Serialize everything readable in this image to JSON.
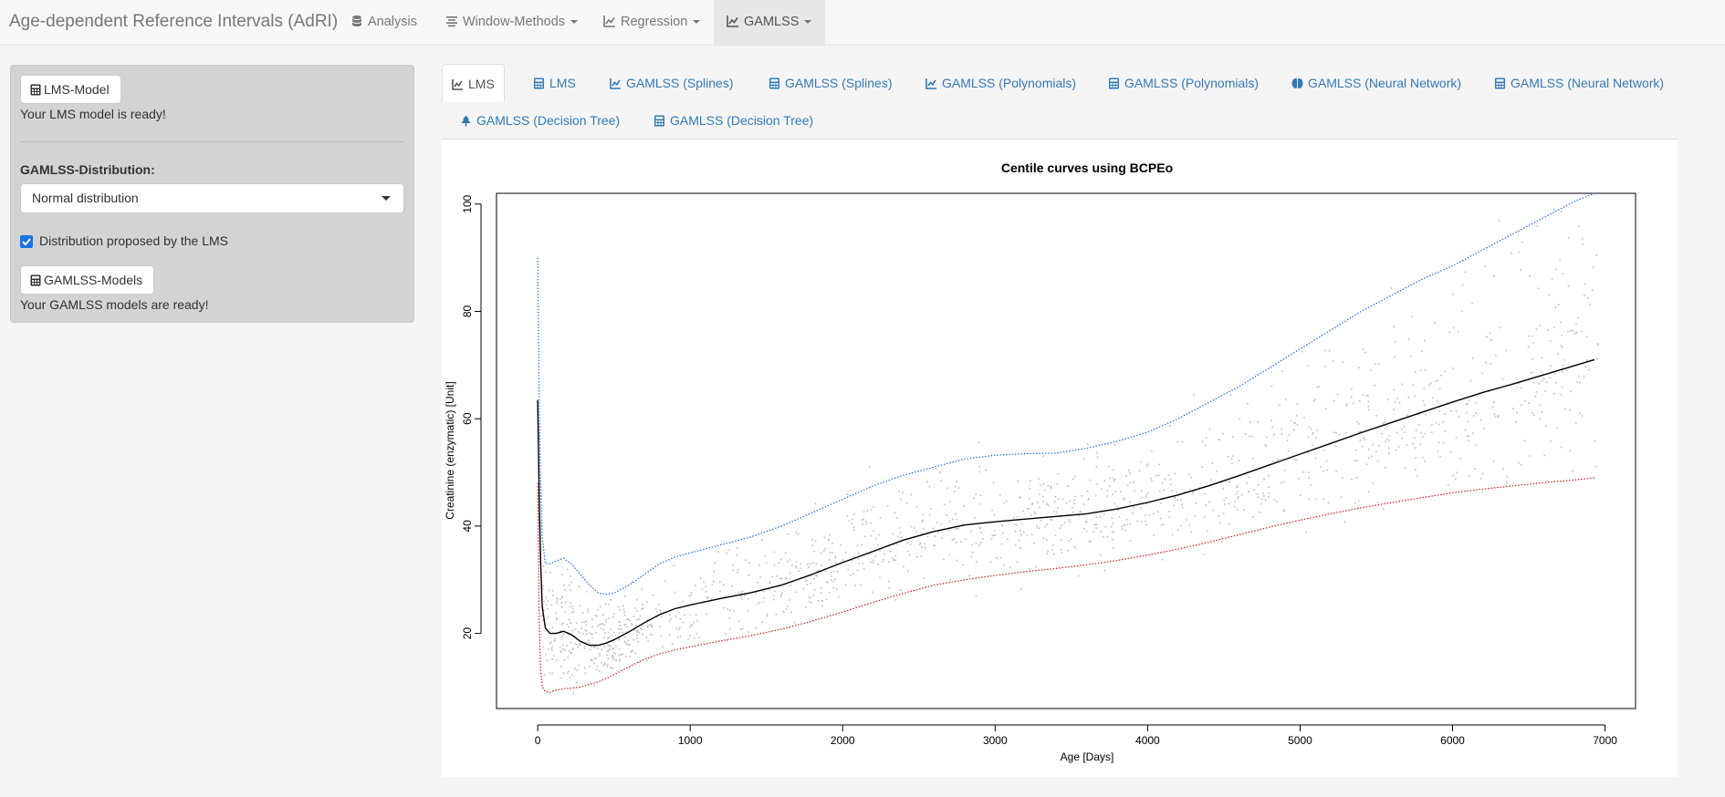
{
  "navbar": {
    "brand": "Age-dependent Reference Intervals (AdRI)",
    "items": [
      {
        "label": "Analysis",
        "icon": "database-icon"
      },
      {
        "label": "Window-Methods",
        "icon": "align-icon"
      },
      {
        "label": "Regression",
        "icon": "line-chart-icon"
      },
      {
        "label": "GAMLSS",
        "icon": "line-chart-icon"
      }
    ]
  },
  "sidebar": {
    "lms_button": "LMS-Model",
    "lms_status": "Your LMS model is ready!",
    "distribution_label": "GAMLSS-Distribution:",
    "distribution_value": "Normal distribution",
    "checkbox_label": "Distribution proposed by the LMS",
    "checkbox_checked": true,
    "gamlss_button": "GAMLSS-Models",
    "gamlss_status": "Your GAMLSS models are ready!"
  },
  "tabs": [
    {
      "label": "LMS",
      "icon": "line-chart-icon",
      "active": true
    },
    {
      "label": "LMS",
      "icon": "calculator-icon"
    },
    {
      "label": "GAMLSS (Splines)",
      "icon": "line-chart-icon"
    },
    {
      "label": "GAMLSS (Splines)",
      "icon": "calculator-icon"
    },
    {
      "label": "GAMLSS (Polynomials)",
      "icon": "line-chart-icon"
    },
    {
      "label": "GAMLSS (Polynomials)",
      "icon": "calculator-icon"
    },
    {
      "label": "GAMLSS (Neural Network)",
      "icon": "brain-icon"
    },
    {
      "label": "GAMLSS (Neural Network)",
      "icon": "calculator-icon"
    },
    {
      "label": "GAMLSS (Decision Tree)",
      "icon": "tree-icon"
    },
    {
      "label": "GAMLSS (Decision Tree)",
      "icon": "calculator-icon"
    }
  ],
  "chart_data": {
    "type": "scatter",
    "title": "Centile curves using BCPEo",
    "xlabel": "Age [Days]",
    "ylabel": "Creatinine (enzymatic) [Unit]",
    "xlim": [
      -270,
      7200
    ],
    "ylim": [
      6,
      102
    ],
    "xticks": [
      0,
      1000,
      2000,
      3000,
      4000,
      5000,
      6000,
      7000
    ],
    "yticks": [
      20,
      40,
      60,
      80,
      100
    ],
    "grid": false,
    "point_color": "#bebebe",
    "series": [
      {
        "role": "upper-centile",
        "color": "#1f6fd1",
        "style": "dotted",
        "x": [
          0,
          5,
          10,
          20,
          30,
          50,
          80,
          120,
          170,
          220,
          280,
          340,
          400,
          450,
          500,
          600,
          700,
          800,
          900,
          1000,
          1200,
          1400,
          1600,
          1800,
          2000,
          2200,
          2400,
          2600,
          2800,
          3000,
          3200,
          3400,
          3600,
          3800,
          4000,
          4200,
          4400,
          4600,
          4800,
          5000,
          5200,
          5400,
          5600,
          5800,
          6000,
          6200,
          6400,
          6600,
          6800,
          6930
        ],
        "y": [
          90,
          78,
          63,
          48,
          38,
          33,
          33,
          33.5,
          34,
          33,
          31,
          29,
          27.5,
          27.3,
          27.5,
          29,
          31,
          33,
          34.2,
          35,
          36.5,
          38,
          40,
          42.5,
          45,
          47.5,
          49.5,
          51,
          52.5,
          53.2,
          53.5,
          53.6,
          54.5,
          55.8,
          57.5,
          60,
          63,
          66,
          69.5,
          73,
          76.5,
          80,
          83,
          86,
          88.5,
          91.5,
          94.5,
          97.5,
          100.5,
          102
        ]
      },
      {
        "role": "median-centile",
        "color": "#000000",
        "style": "solid",
        "x": [
          0,
          5,
          10,
          20,
          30,
          50,
          80,
          120,
          170,
          220,
          280,
          340,
          400,
          450,
          500,
          600,
          700,
          800,
          900,
          1000,
          1200,
          1400,
          1600,
          1800,
          2000,
          2200,
          2400,
          2600,
          2800,
          3000,
          3200,
          3400,
          3600,
          3800,
          4000,
          4200,
          4400,
          4600,
          4800,
          5000,
          5200,
          5400,
          5600,
          5800,
          6000,
          6200,
          6400,
          6600,
          6800,
          6930
        ],
        "y": [
          63.5,
          55,
          45,
          33,
          25,
          21,
          20,
          20,
          20.4,
          19.8,
          18.5,
          17.8,
          17.8,
          18.2,
          18.8,
          20.3,
          22,
          23.5,
          24.6,
          25.3,
          26.5,
          27.6,
          29,
          31,
          33.2,
          35.3,
          37.4,
          39,
          40.2,
          40.8,
          41.3,
          41.8,
          42.3,
          43.2,
          44.4,
          45.8,
          47.5,
          49.4,
          51.4,
          53.4,
          55.4,
          57.4,
          59.3,
          61.2,
          63.1,
          64.9,
          66.5,
          68.2,
          69.9,
          71
        ]
      },
      {
        "role": "lower-centile",
        "color": "#c81e1e",
        "style": "dotted",
        "x": [
          0,
          5,
          10,
          20,
          30,
          50,
          80,
          120,
          170,
          220,
          280,
          340,
          400,
          450,
          500,
          600,
          700,
          800,
          900,
          1000,
          1200,
          1400,
          1600,
          1800,
          2000,
          2200,
          2400,
          2600,
          2800,
          3000,
          3200,
          3400,
          3600,
          3800,
          4000,
          4200,
          4400,
          4600,
          4800,
          5000,
          5200,
          5400,
          5600,
          5800,
          6000,
          6200,
          6400,
          6600,
          6800,
          6930
        ],
        "y": [
          48,
          36,
          22,
          13,
          10,
          9.2,
          9,
          9.4,
          9.7,
          9.8,
          10,
          10.5,
          11,
          11.6,
          12.3,
          13.8,
          15.2,
          16.2,
          16.9,
          17.5,
          18.6,
          19.6,
          20.8,
          22.3,
          24,
          25.8,
          27.5,
          29,
          30,
          30.8,
          31.5,
          32.1,
          32.8,
          33.6,
          34.6,
          35.7,
          37,
          38.4,
          39.8,
          41.1,
          42.3,
          43.4,
          44.4,
          45.3,
          46.2,
          46.9,
          47.5,
          48.1,
          48.6,
          49
        ]
      }
    ]
  }
}
